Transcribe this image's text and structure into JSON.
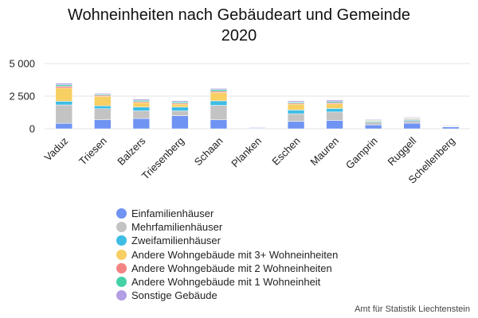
{
  "chart_data": {
    "type": "bar",
    "stacked": true,
    "title_lines": [
      "Wohneinheiten nach Gebäudeart und Gemeinde",
      "2020"
    ],
    "ylim": [
      0,
      5000
    ],
    "yticks": [
      0,
      2500,
      5000
    ],
    "ytick_labels": [
      "0",
      "2 500",
      "5 000"
    ],
    "grid": true,
    "legend_position": "bottom",
    "categories": [
      "Vaduz",
      "Triesen",
      "Balzers",
      "Triesenberg",
      "Schaan",
      "Planken",
      "Eschen",
      "Mauren",
      "Gamprin",
      "Ruggell",
      "Schellenberg"
    ],
    "series": [
      {
        "name": "Einfamilienhäuser",
        "color": "#6f93f2",
        "values": [
          420,
          690,
          790,
          1000,
          690,
          70,
          560,
          640,
          300,
          430,
          150
        ]
      },
      {
        "name": "Mehrfamilienhäuser",
        "color": "#c3c3c3",
        "values": [
          1410,
          850,
          580,
          370,
          1110,
          20,
          590,
          650,
          200,
          200,
          50
        ]
      },
      {
        "name": "Zweifamilienhäuser",
        "color": "#3dbde4",
        "values": [
          280,
          220,
          300,
          300,
          340,
          0,
          290,
          270,
          70,
          80,
          20
        ]
      },
      {
        "name": "Andere Wohngebäude mit 3+ Wohneinheiten",
        "color": "#f7cf63",
        "values": [
          1020,
          730,
          340,
          220,
          640,
          0,
          450,
          350,
          60,
          70,
          10
        ]
      },
      {
        "name": "Andere Wohngebäude mit 2 Wohneinheiten",
        "color": "#f48484",
        "values": [
          130,
          80,
          80,
          80,
          100,
          10,
          80,
          90,
          30,
          30,
          10
        ]
      },
      {
        "name": "Andere Wohngebäude mit 1 Wohneinheit",
        "color": "#44d1a6",
        "values": [
          120,
          80,
          90,
          90,
          120,
          10,
          80,
          90,
          30,
          40,
          10
        ]
      },
      {
        "name": "Sonstige Gebäude",
        "color": "#b29ee5",
        "values": [
          120,
          70,
          90,
          80,
          90,
          10,
          90,
          110,
          50,
          40,
          20
        ]
      }
    ]
  },
  "source": "Amt für Statistik Liechtenstein"
}
